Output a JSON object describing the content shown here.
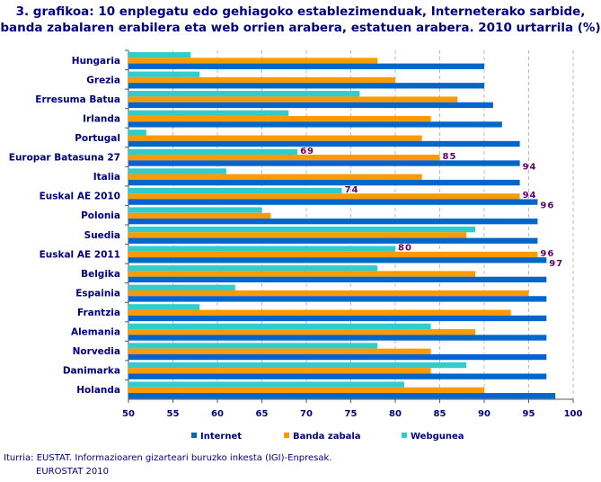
{
  "chart_data": {
    "type": "bar",
    "orientation": "horizontal",
    "title": "3. grafikoa: 10 enplegatu edo gehiagoko establezimenduak, Interneterako sarbide, banda zabalaren erabilera eta web orrien arabera, estatuen arabera. 2010 urtarrila (%)",
    "categories": [
      "Hungaria",
      "Grezia",
      "Erresuma Batua",
      "Irlanda",
      "Portugal",
      "Europar Batasuna 27",
      "Italia",
      "Euskal AE 2010",
      "Polonia",
      "Suedia",
      "Euskal AE 2011",
      "Belgika",
      "Espainia",
      "Frantzia",
      "Alemania",
      "Norvedia",
      "Danimarka",
      "Holanda"
    ],
    "series": [
      {
        "name": "Internet",
        "color": "#0066CC",
        "values": [
          90,
          90,
          91,
          92,
          94,
          94,
          94,
          96,
          96,
          96,
          97,
          97,
          97,
          97,
          97,
          97,
          97,
          98
        ]
      },
      {
        "name": "Banda zabala",
        "color": "#FF9900",
        "values": [
          78,
          80,
          87,
          84,
          83,
          85,
          83,
          94,
          66,
          88,
          96,
          89,
          95,
          93,
          89,
          84,
          84,
          90
        ]
      },
      {
        "name": "Webgunea",
        "color": "#33CCCC",
        "values": [
          57,
          58,
          76,
          68,
          52,
          69,
          61,
          74,
          65,
          89,
          80,
          78,
          62,
          58,
          84,
          78,
          88,
          81
        ]
      }
    ],
    "data_labels": {
      "Europar Batasuna 27": [
        94,
        85,
        69
      ],
      "Euskal AE 2010": [
        96,
        94,
        74
      ],
      "Euskal AE 2011": [
        97,
        96,
        80
      ]
    },
    "xlim": [
      50,
      100
    ],
    "xticks": [
      50,
      55,
      60,
      65,
      70,
      75,
      80,
      85,
      90,
      95,
      100
    ],
    "grid": "vertical dashed",
    "legend": "bottom"
  },
  "source": {
    "line1": "Iturria: EUSTAT. Informazioaren gizarteari buruzko inkesta (IGI)-Enpresak.",
    "line2": "EUROSTAT 2010"
  }
}
